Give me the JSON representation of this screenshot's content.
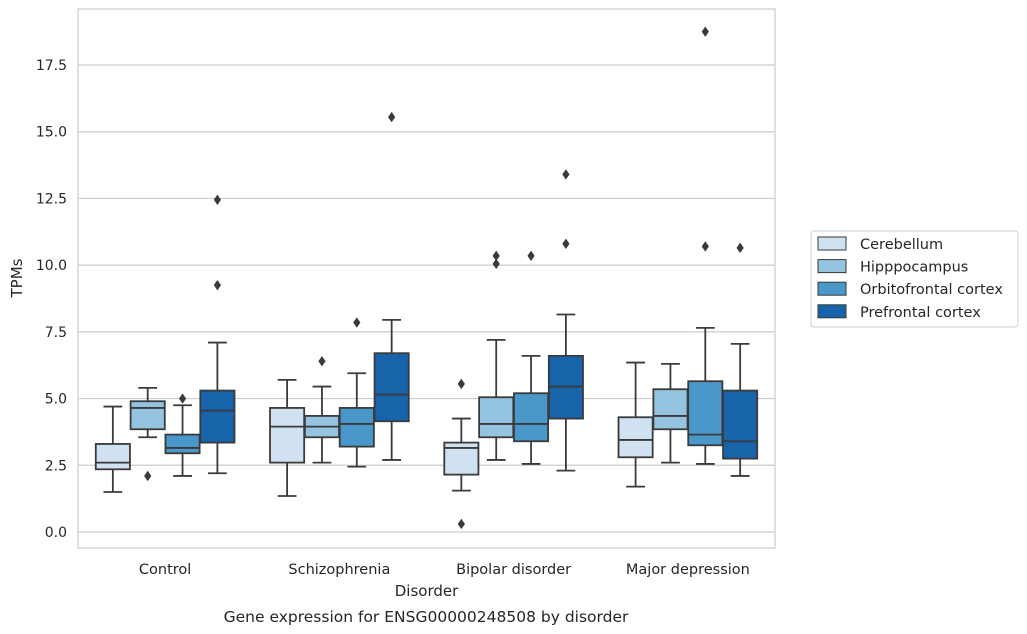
{
  "caption": "Gene expression for ENSG00000248508 by disorder",
  "chart_data": {
    "type": "box",
    "xlabel": "Disorder",
    "ylabel": "TPMs",
    "ylim": [
      -0.6,
      19.6
    ],
    "yticks": [
      "0.0",
      "2.5",
      "5.0",
      "7.5",
      "10.0",
      "12.5",
      "15.0",
      "17.5"
    ],
    "ytick_values": [
      0,
      2.5,
      5,
      7.5,
      10,
      12.5,
      15,
      17.5
    ],
    "grid": "horizontal",
    "legend_position": "right",
    "categories": [
      "Control",
      "Schizophrenia",
      "Bipolar disorder",
      "Major depression"
    ],
    "series": [
      {
        "name": "Cerebellum",
        "color": "#d0e1f2",
        "boxes": [
          {
            "whisker_low": 1.5,
            "q1": 2.35,
            "median": 2.6,
            "q3": 3.3,
            "whisker_high": 4.7,
            "outliers": []
          },
          {
            "whisker_low": 1.35,
            "q1": 2.6,
            "median": 3.95,
            "q3": 4.65,
            "whisker_high": 5.7,
            "outliers": []
          },
          {
            "whisker_low": 1.55,
            "q1": 2.15,
            "median": 3.15,
            "q3": 3.35,
            "whisker_high": 4.25,
            "outliers": [
              0.3,
              5.55
            ]
          },
          {
            "whisker_low": 1.7,
            "q1": 2.8,
            "median": 3.45,
            "q3": 4.3,
            "whisker_high": 6.35,
            "outliers": []
          }
        ]
      },
      {
        "name": "Hipppocampus",
        "color": "#94c4df",
        "boxes": [
          {
            "whisker_low": 3.55,
            "q1": 3.85,
            "median": 4.65,
            "q3": 4.9,
            "whisker_high": 5.4,
            "outliers": [
              2.1
            ]
          },
          {
            "whisker_low": 2.6,
            "q1": 3.55,
            "median": 3.95,
            "q3": 4.35,
            "whisker_high": 5.45,
            "outliers": [
              6.4
            ]
          },
          {
            "whisker_low": 2.7,
            "q1": 3.55,
            "median": 4.05,
            "q3": 5.05,
            "whisker_high": 7.2,
            "outliers": [
              10.05,
              10.35
            ]
          },
          {
            "whisker_low": 2.6,
            "q1": 3.85,
            "median": 4.35,
            "q3": 5.35,
            "whisker_high": 6.3,
            "outliers": []
          }
        ]
      },
      {
        "name": "Orbitofrontal cortex",
        "color": "#4a98c9",
        "boxes": [
          {
            "whisker_low": 2.1,
            "q1": 2.95,
            "median": 3.15,
            "q3": 3.65,
            "whisker_high": 4.75,
            "outliers": [
              5.0
            ]
          },
          {
            "whisker_low": 2.45,
            "q1": 3.2,
            "median": 4.05,
            "q3": 4.65,
            "whisker_high": 5.95,
            "outliers": [
              7.85
            ]
          },
          {
            "whisker_low": 2.55,
            "q1": 3.4,
            "median": 4.05,
            "q3": 5.2,
            "whisker_high": 6.6,
            "outliers": [
              10.35
            ]
          },
          {
            "whisker_low": 2.55,
            "q1": 3.25,
            "median": 3.65,
            "q3": 5.65,
            "whisker_high": 7.65,
            "outliers": [
              10.7,
              18.75
            ]
          }
        ]
      },
      {
        "name": "Prefrontal cortex",
        "color": "#1764ab",
        "boxes": [
          {
            "whisker_low": 2.2,
            "q1": 3.35,
            "median": 4.55,
            "q3": 5.3,
            "whisker_high": 7.1,
            "outliers": [
              9.25,
              12.45
            ]
          },
          {
            "whisker_low": 2.7,
            "q1": 4.15,
            "median": 5.15,
            "q3": 6.7,
            "whisker_high": 7.95,
            "outliers": [
              15.55
            ]
          },
          {
            "whisker_low": 2.3,
            "q1": 4.25,
            "median": 5.45,
            "q3": 6.6,
            "whisker_high": 8.15,
            "outliers": [
              10.8,
              13.4
            ]
          },
          {
            "whisker_low": 2.1,
            "q1": 2.75,
            "median": 3.4,
            "q3": 5.3,
            "whisker_high": 7.05,
            "outliers": [
              10.65
            ]
          }
        ]
      }
    ]
  }
}
